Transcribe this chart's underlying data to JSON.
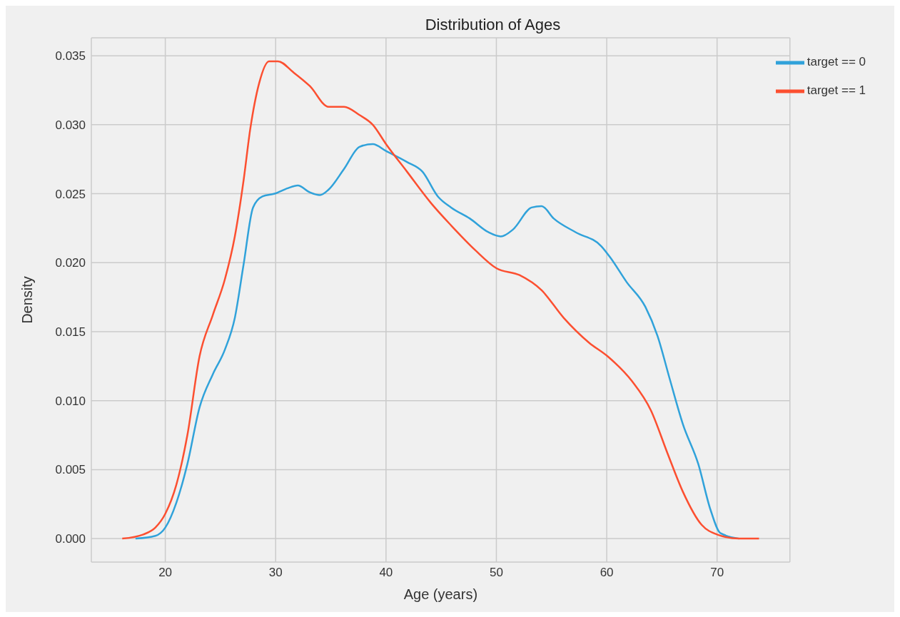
{
  "chart_data": {
    "type": "line",
    "title": "Distribution of Ages",
    "xlabel": "Age (years)",
    "ylabel": "Density",
    "series": [
      {
        "name": "target == 0",
        "color": "#30a2da",
        "x": [
          17.3,
          19.1,
          20,
          21,
          22,
          23.1,
          24.3,
          25.4,
          26.3,
          27.1,
          27.95,
          28.8,
          29.9,
          31.1,
          32,
          33.1,
          34,
          34.8,
          36.2,
          37.6,
          38.8,
          40,
          41.9,
          43.3,
          44.7,
          45.9,
          47.6,
          49.3,
          50.4,
          51.5,
          53.2,
          54.1,
          55.2,
          57.2,
          59.5,
          60.3,
          61.8,
          63.5,
          64.6,
          65.7,
          66.9,
          68.3,
          69.4,
          70.3,
          72
        ],
        "values": [
          0,
          0.0002,
          0.0008,
          0.0026,
          0.0054,
          0.0095,
          0.0119,
          0.0137,
          0.016,
          0.0199,
          0.024,
          0.0248,
          0.025,
          0.0254,
          0.0256,
          0.0251,
          0.0249,
          0.0253,
          0.0268,
          0.0284,
          0.0286,
          0.0281,
          0.0273,
          0.0266,
          0.0248,
          0.024,
          0.0232,
          0.0222,
          0.0219,
          0.0224,
          0.024,
          0.0241,
          0.0232,
          0.0222,
          0.0212,
          0.0204,
          0.0186,
          0.0168,
          0.0147,
          0.0116,
          0.0083,
          0.0054,
          0.0021,
          0.0004,
          0
        ]
      },
      {
        "name": "target == 1",
        "color": "#fc4f30",
        "x": [
          16.1,
          18,
          19.1,
          20,
          21,
          22,
          23.1,
          24.3,
          25.4,
          26.3,
          27.1,
          27.7,
          28.5,
          29.4,
          30.2,
          31.6,
          33.1,
          34.8,
          36.2,
          37.6,
          38.8,
          40,
          41.9,
          44.1,
          45.9,
          48.1,
          50,
          52.1,
          54.1,
          56.1,
          58.4,
          60.1,
          62.3,
          64,
          65.5,
          66.9,
          68.6,
          70,
          72,
          73.8
        ],
        "values": [
          0,
          0.0003,
          0.0008,
          0.0018,
          0.0039,
          0.0075,
          0.0132,
          0.0162,
          0.0188,
          0.0219,
          0.026,
          0.0297,
          0.033,
          0.0346,
          0.0346,
          0.0338,
          0.0328,
          0.0313,
          0.0313,
          0.0307,
          0.03,
          0.0286,
          0.0266,
          0.0243,
          0.0227,
          0.0209,
          0.0196,
          0.0191,
          0.018,
          0.016,
          0.0142,
          0.0132,
          0.0114,
          0.0093,
          0.0062,
          0.0034,
          0.001,
          0.0003,
          0,
          0
        ]
      }
    ],
    "xlim": [
      13.3,
      76.6
    ],
    "xticks": [
      20,
      30,
      40,
      50,
      60,
      70
    ],
    "ylim": [
      -0.0017,
      0.0363
    ],
    "yticks": [
      {
        "value": 0,
        "label": "0.000"
      },
      {
        "value": 0.005,
        "label": "0.005"
      },
      {
        "value": 0.01,
        "label": "0.010"
      },
      {
        "value": 0.015,
        "label": "0.015"
      },
      {
        "value": 0.02,
        "label": "0.020"
      },
      {
        "value": 0.025,
        "label": "0.025"
      },
      {
        "value": 0.03,
        "label": "0.030"
      },
      {
        "value": 0.035,
        "label": "0.035"
      }
    ],
    "grid": true,
    "legend": "top right",
    "marker": "none",
    "line_style": "solid"
  }
}
